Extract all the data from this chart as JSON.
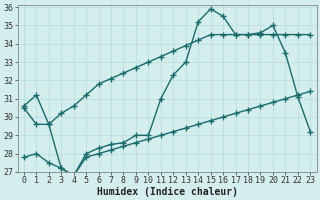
{
  "line1_x": [
    0,
    1,
    2,
    3,
    4,
    5,
    6,
    7,
    8,
    9,
    10,
    11,
    12,
    13,
    14,
    15,
    16,
    17,
    18,
    19,
    20,
    21,
    22,
    23
  ],
  "line1_y": [
    30.6,
    31.2,
    29.6,
    27.2,
    26.8,
    28.0,
    28.3,
    28.5,
    28.6,
    29.0,
    29.0,
    31.0,
    32.3,
    33.0,
    35.2,
    35.9,
    35.5,
    34.5,
    34.5,
    34.6,
    35.0,
    33.5,
    31.1,
    29.2
  ],
  "line2_x": [
    0,
    1,
    2,
    3,
    4,
    5,
    6,
    7,
    8,
    9,
    10,
    11,
    12,
    13,
    14,
    15,
    16,
    17,
    18,
    19,
    20,
    21,
    22,
    23
  ],
  "line2_y": [
    30.5,
    29.6,
    29.6,
    30.2,
    30.6,
    31.2,
    31.8,
    32.1,
    32.4,
    32.7,
    33.0,
    33.3,
    33.6,
    33.9,
    34.2,
    34.5,
    34.5,
    34.5,
    34.5,
    34.5,
    34.5,
    34.5,
    34.5,
    34.5
  ],
  "line3_x": [
    0,
    1,
    2,
    3,
    4,
    5,
    6,
    7,
    8,
    9,
    10,
    11,
    12,
    13,
    14,
    15,
    16,
    17,
    18,
    19,
    20,
    21,
    22,
    23
  ],
  "line3_y": [
    27.8,
    28.0,
    27.5,
    27.2,
    26.8,
    27.8,
    28.0,
    28.2,
    28.4,
    28.6,
    28.8,
    29.0,
    29.2,
    29.4,
    29.6,
    29.8,
    30.0,
    30.2,
    30.4,
    30.6,
    30.8,
    31.0,
    31.2,
    31.4
  ],
  "line_color": "#1a6b6b",
  "bg_color": "#d4eeee",
  "grid_color": "#b8dcdc",
  "xlabel": "Humidex (Indice chaleur)",
  "xlim": [
    -0.5,
    23.5
  ],
  "ylim": [
    27,
    36
  ],
  "yticks": [
    27,
    28,
    29,
    30,
    31,
    32,
    33,
    34,
    35,
    36
  ],
  "xticks": [
    0,
    1,
    2,
    3,
    4,
    5,
    6,
    7,
    8,
    9,
    10,
    11,
    12,
    13,
    14,
    15,
    16,
    17,
    18,
    19,
    20,
    21,
    22,
    23
  ],
  "marker": "+",
  "markersize": 4,
  "linewidth": 1.0,
  "tick_fontsize": 6,
  "xlabel_fontsize": 7
}
